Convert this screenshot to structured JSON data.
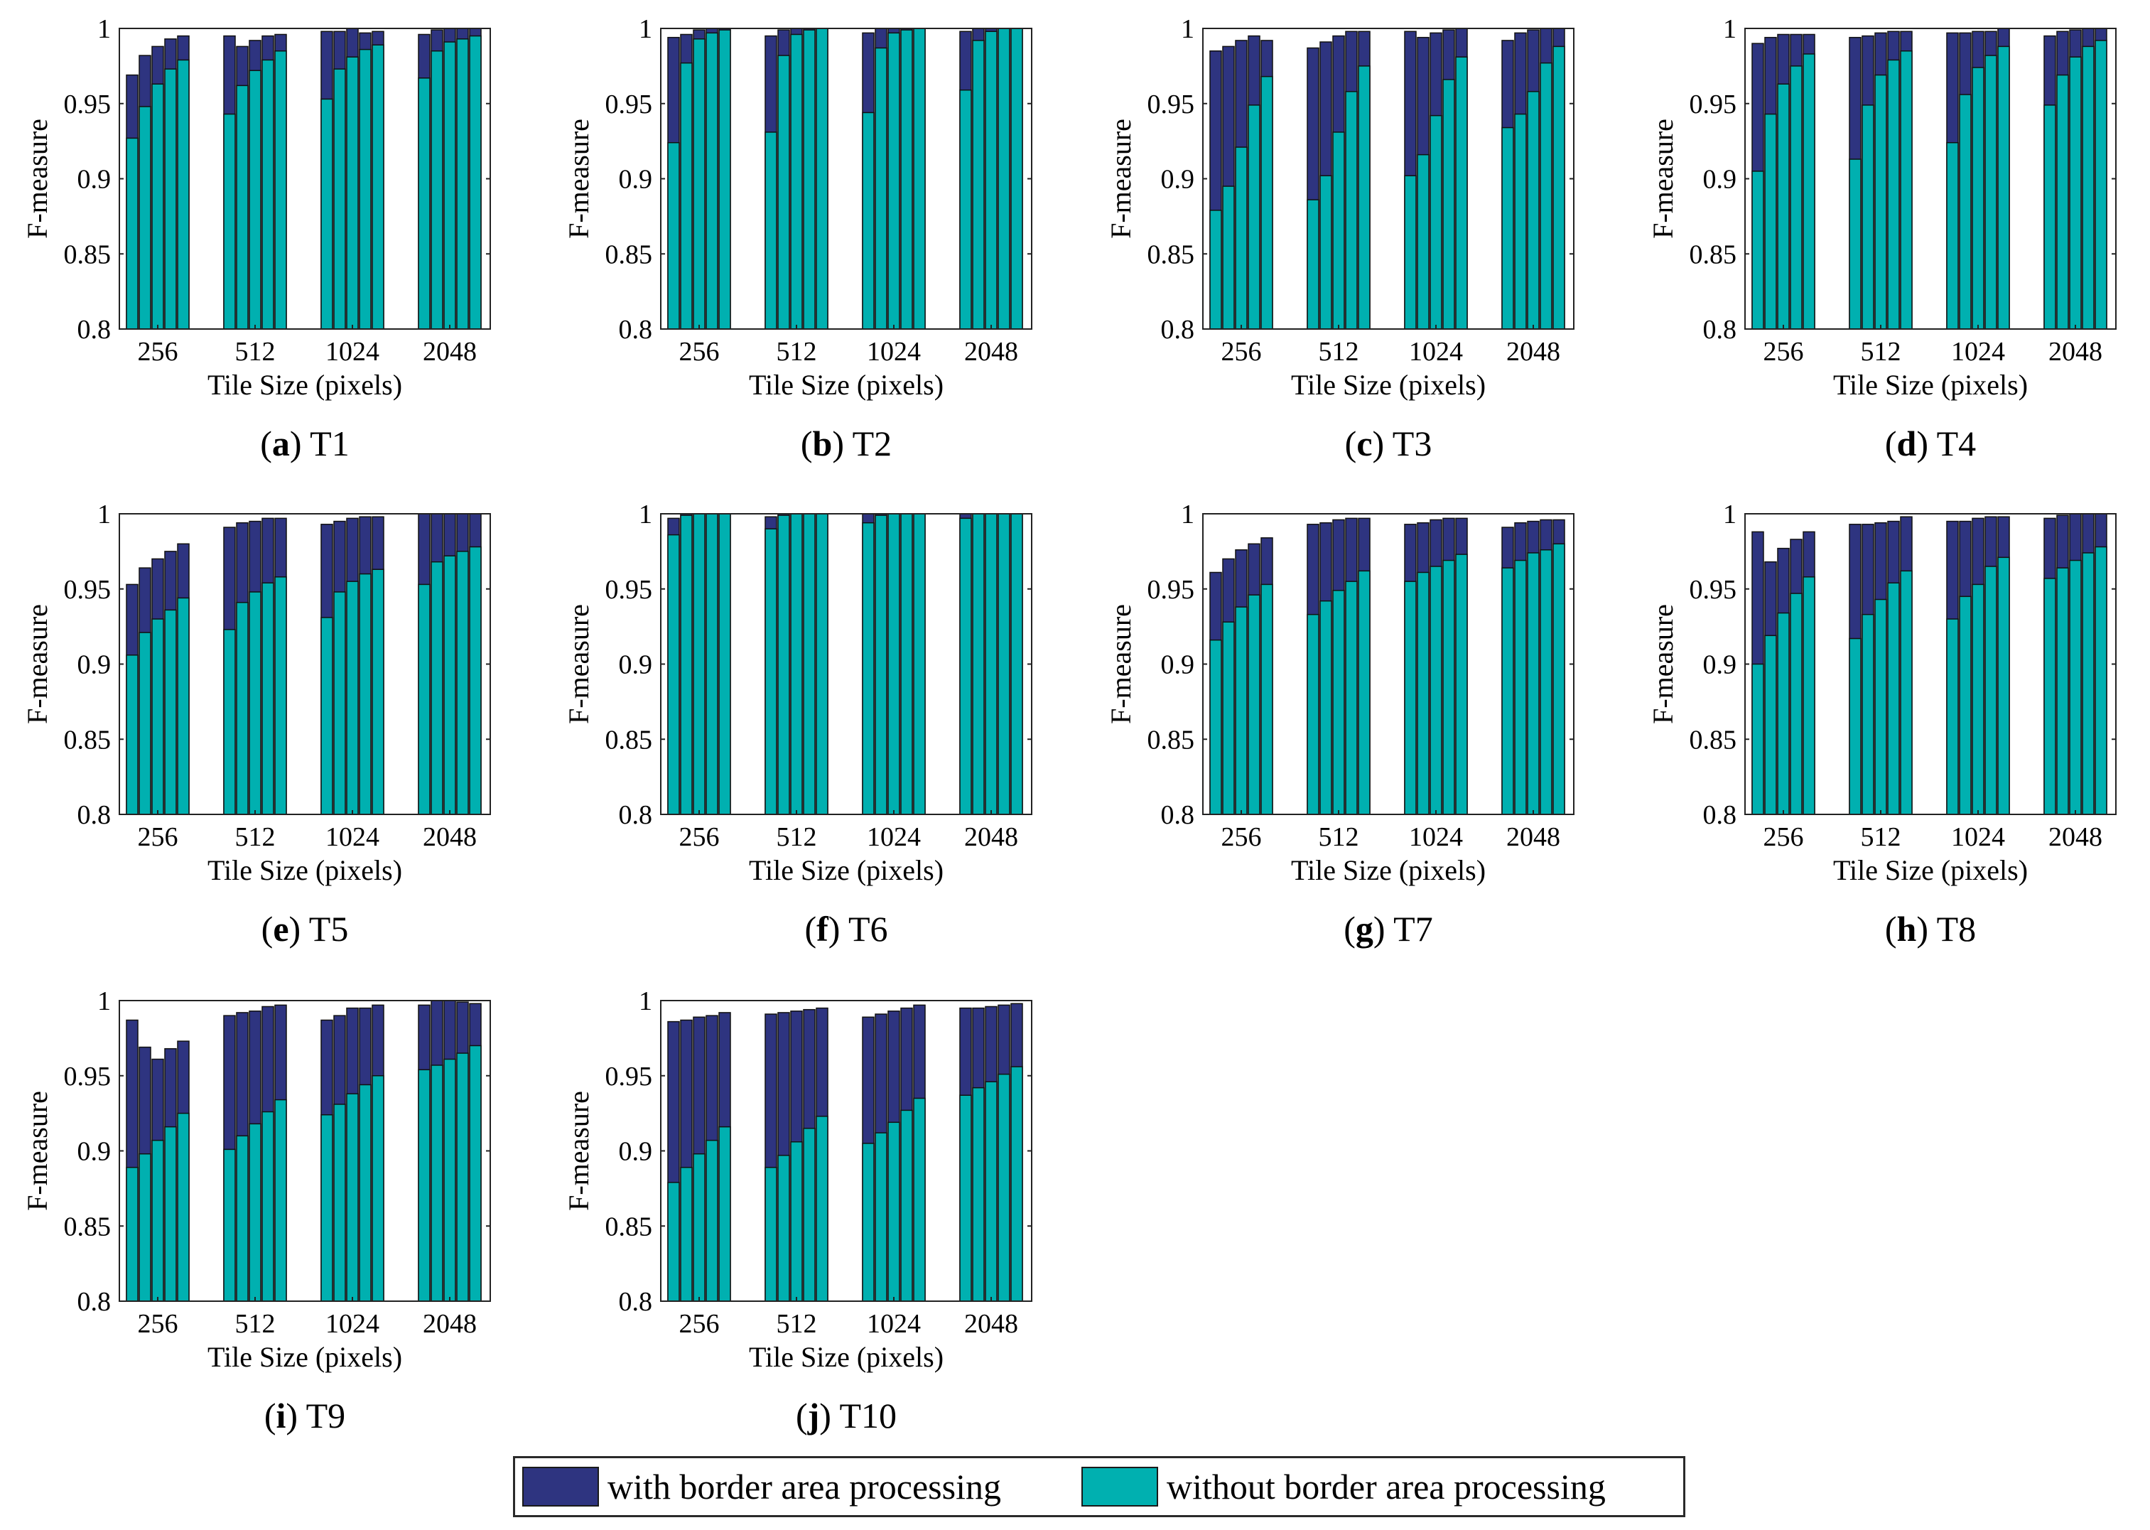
{
  "colors": {
    "with_border": "#2e3480",
    "without_border": "#00b0b0",
    "bar_edge": "#111111"
  },
  "legend": {
    "with_border": "with border area processing",
    "without_border": "without border area processing"
  },
  "chart_data": [
    {
      "id": "T1",
      "letter": "a",
      "label": "T1",
      "type": "bar",
      "xlabel": "Tile Size (pixels)",
      "ylabel": "F-measure",
      "ylim": [
        0.8,
        1
      ],
      "yticks": [
        "0.8",
        "0.85",
        "0.9",
        "0.95",
        "1"
      ],
      "categories": [
        "256",
        "512",
        "1024",
        "2048"
      ],
      "series": [
        {
          "name": "with border area processing",
          "values": [
            [
              0.969,
              0.982,
              0.988,
              0.993,
              0.995
            ],
            [
              0.995,
              0.988,
              0.992,
              0.995,
              0.996
            ],
            [
              0.998,
              0.998,
              1.0,
              0.997,
              0.998
            ],
            [
              0.996,
              0.999,
              1.0,
              1.0,
              1.0
            ]
          ]
        },
        {
          "name": "without border area processing",
          "values": [
            [
              0.927,
              0.948,
              0.963,
              0.973,
              0.979
            ],
            [
              0.943,
              0.962,
              0.972,
              0.979,
              0.985
            ],
            [
              0.953,
              0.973,
              0.981,
              0.986,
              0.989
            ],
            [
              0.967,
              0.985,
              0.991,
              0.993,
              0.995
            ]
          ]
        }
      ]
    },
    {
      "id": "T2",
      "letter": "b",
      "label": "T2",
      "type": "bar",
      "xlabel": "Tile Size (pixels)",
      "ylabel": "F-measure",
      "ylim": [
        0.8,
        1
      ],
      "yticks": [
        "0.8",
        "0.85",
        "0.9",
        "0.95",
        "1"
      ],
      "categories": [
        "256",
        "512",
        "1024",
        "2048"
      ],
      "series": [
        {
          "name": "with border area processing",
          "values": [
            [
              0.994,
              0.996,
              0.999,
              1.0,
              1.0
            ],
            [
              0.995,
              0.999,
              1.0,
              1.0,
              1.0
            ],
            [
              0.997,
              1.0,
              1.0,
              1.0,
              1.0
            ],
            [
              0.998,
              1.0,
              1.0,
              1.0,
              1.0
            ]
          ]
        },
        {
          "name": "without border area processing",
          "values": [
            [
              0.924,
              0.977,
              0.993,
              0.997,
              0.999
            ],
            [
              0.931,
              0.982,
              0.996,
              0.999,
              1.0
            ],
            [
              0.944,
              0.987,
              0.997,
              0.999,
              1.0
            ],
            [
              0.959,
              0.992,
              0.998,
              1.0,
              1.0
            ]
          ]
        }
      ]
    },
    {
      "id": "T3",
      "letter": "c",
      "label": "T3",
      "type": "bar",
      "xlabel": "Tile Size (pixels)",
      "ylabel": "F-measure",
      "ylim": [
        0.8,
        1
      ],
      "yticks": [
        "0.8",
        "0.85",
        "0.9",
        "0.95",
        "1"
      ],
      "categories": [
        "256",
        "512",
        "1024",
        "2048"
      ],
      "series": [
        {
          "name": "with border area processing",
          "values": [
            [
              0.985,
              0.988,
              0.992,
              0.995,
              0.992
            ],
            [
              0.987,
              0.991,
              0.995,
              0.998,
              0.998
            ],
            [
              0.998,
              0.994,
              0.997,
              0.999,
              1.0
            ],
            [
              0.992,
              0.997,
              0.999,
              1.0,
              1.0
            ]
          ]
        },
        {
          "name": "without border area processing",
          "values": [
            [
              0.879,
              0.895,
              0.921,
              0.949,
              0.968
            ],
            [
              0.886,
              0.902,
              0.931,
              0.958,
              0.975
            ],
            [
              0.902,
              0.916,
              0.942,
              0.966,
              0.981
            ],
            [
              0.934,
              0.943,
              0.958,
              0.977,
              0.988
            ]
          ]
        }
      ]
    },
    {
      "id": "T4",
      "letter": "d",
      "label": "T4",
      "type": "bar",
      "xlabel": "Tile Size (pixels)",
      "ylabel": "F-measure",
      "ylim": [
        0.8,
        1
      ],
      "yticks": [
        "0.8",
        "0.85",
        "0.9",
        "0.95",
        "1"
      ],
      "categories": [
        "256",
        "512",
        "1024",
        "2048"
      ],
      "series": [
        {
          "name": "with border area processing",
          "values": [
            [
              0.99,
              0.994,
              0.996,
              0.996,
              0.996
            ],
            [
              0.994,
              0.995,
              0.997,
              0.998,
              0.998
            ],
            [
              0.997,
              0.997,
              0.998,
              0.998,
              1.0
            ],
            [
              0.995,
              0.998,
              0.999,
              1.0,
              1.0
            ]
          ]
        },
        {
          "name": "without border area processing",
          "values": [
            [
              0.905,
              0.943,
              0.963,
              0.975,
              0.983
            ],
            [
              0.913,
              0.949,
              0.969,
              0.979,
              0.985
            ],
            [
              0.924,
              0.956,
              0.974,
              0.982,
              0.988
            ],
            [
              0.949,
              0.969,
              0.981,
              0.988,
              0.992
            ]
          ]
        }
      ]
    },
    {
      "id": "T5",
      "letter": "e",
      "label": "T5",
      "type": "bar",
      "xlabel": "Tile Size (pixels)",
      "ylabel": "F-measure",
      "ylim": [
        0.8,
        1
      ],
      "yticks": [
        "0.8",
        "0.85",
        "0.9",
        "0.95",
        "1"
      ],
      "categories": [
        "256",
        "512",
        "1024",
        "2048"
      ],
      "series": [
        {
          "name": "with border area processing",
          "values": [
            [
              0.953,
              0.964,
              0.97,
              0.975,
              0.98
            ],
            [
              0.991,
              0.994,
              0.995,
              0.997,
              0.997
            ],
            [
              0.993,
              0.995,
              0.997,
              0.998,
              0.998
            ],
            [
              1.0,
              1.0,
              1.0,
              1.0,
              1.0
            ]
          ]
        },
        {
          "name": "without border area processing",
          "values": [
            [
              0.906,
              0.921,
              0.93,
              0.936,
              0.944
            ],
            [
              0.923,
              0.941,
              0.948,
              0.954,
              0.958
            ],
            [
              0.931,
              0.948,
              0.955,
              0.96,
              0.963
            ],
            [
              0.953,
              0.968,
              0.972,
              0.975,
              0.978
            ]
          ]
        }
      ]
    },
    {
      "id": "T6",
      "letter": "f",
      "label": "T6",
      "type": "bar",
      "xlabel": "Tile Size (pixels)",
      "ylabel": "F-measure",
      "ylim": [
        0.8,
        1
      ],
      "yticks": [
        "0.8",
        "0.85",
        "0.9",
        "0.95",
        "1"
      ],
      "categories": [
        "256",
        "512",
        "1024",
        "2048"
      ],
      "series": [
        {
          "name": "with border area processing",
          "values": [
            [
              0.997,
              1.0,
              1.0,
              1.0,
              1.0
            ],
            [
              0.998,
              1.0,
              1.0,
              1.0,
              1.0
            ],
            [
              1.0,
              1.0,
              1.0,
              1.0,
              1.0
            ],
            [
              1.0,
              1.0,
              1.0,
              1.0,
              1.0
            ]
          ]
        },
        {
          "name": "without border area processing",
          "values": [
            [
              0.986,
              0.999,
              1.0,
              1.0,
              1.0
            ],
            [
              0.99,
              0.999,
              1.0,
              1.0,
              1.0
            ],
            [
              0.994,
              0.999,
              1.0,
              1.0,
              1.0
            ],
            [
              0.997,
              1.0,
              1.0,
              1.0,
              1.0
            ]
          ]
        }
      ]
    },
    {
      "id": "T7",
      "letter": "g",
      "label": "T7",
      "type": "bar",
      "xlabel": "Tile Size (pixels)",
      "ylabel": "F-measure",
      "ylim": [
        0.8,
        1
      ],
      "yticks": [
        "0.8",
        "0.85",
        "0.9",
        "0.95",
        "1"
      ],
      "categories": [
        "256",
        "512",
        "1024",
        "2048"
      ],
      "series": [
        {
          "name": "with border area processing",
          "values": [
            [
              0.961,
              0.97,
              0.976,
              0.98,
              0.984
            ],
            [
              0.993,
              0.994,
              0.996,
              0.997,
              0.997
            ],
            [
              0.993,
              0.994,
              0.996,
              0.997,
              0.997
            ],
            [
              0.991,
              0.994,
              0.995,
              0.996,
              0.996
            ]
          ]
        },
        {
          "name": "without border area processing",
          "values": [
            [
              0.916,
              0.928,
              0.938,
              0.946,
              0.953
            ],
            [
              0.933,
              0.942,
              0.949,
              0.955,
              0.962
            ],
            [
              0.955,
              0.961,
              0.965,
              0.969,
              0.973
            ],
            [
              0.964,
              0.969,
              0.974,
              0.976,
              0.98
            ]
          ]
        }
      ]
    },
    {
      "id": "T8",
      "letter": "h",
      "label": "T8",
      "type": "bar",
      "xlabel": "Tile Size (pixels)",
      "ylabel": "F-measure",
      "ylim": [
        0.8,
        1
      ],
      "yticks": [
        "0.8",
        "0.85",
        "0.9",
        "0.95",
        "1"
      ],
      "categories": [
        "256",
        "512",
        "1024",
        "2048"
      ],
      "series": [
        {
          "name": "with border area processing",
          "values": [
            [
              0.988,
              0.968,
              0.977,
              0.983,
              0.988
            ],
            [
              0.993,
              0.993,
              0.994,
              0.995,
              0.998
            ],
            [
              0.995,
              0.995,
              0.997,
              0.998,
              0.998
            ],
            [
              0.997,
              0.999,
              1.0,
              1.0,
              1.0
            ]
          ]
        },
        {
          "name": "without border area processing",
          "values": [
            [
              0.9,
              0.919,
              0.934,
              0.947,
              0.958
            ],
            [
              0.917,
              0.933,
              0.943,
              0.954,
              0.962
            ],
            [
              0.93,
              0.945,
              0.953,
              0.965,
              0.971
            ],
            [
              0.957,
              0.964,
              0.969,
              0.974,
              0.978
            ]
          ]
        }
      ]
    },
    {
      "id": "T9",
      "letter": "i",
      "label": "T9",
      "type": "bar",
      "xlabel": "Tile Size (pixels)",
      "ylabel": "F-measure",
      "ylim": [
        0.8,
        1
      ],
      "yticks": [
        "0.8",
        "0.85",
        "0.9",
        "0.95",
        "1"
      ],
      "categories": [
        "256",
        "512",
        "1024",
        "2048"
      ],
      "series": [
        {
          "name": "with border area processing",
          "values": [
            [
              0.987,
              0.969,
              0.961,
              0.968,
              0.973
            ],
            [
              0.99,
              0.992,
              0.993,
              0.996,
              0.997
            ],
            [
              0.987,
              0.99,
              0.995,
              0.995,
              0.997
            ],
            [
              0.997,
              1.0,
              1.0,
              0.999,
              0.998
            ]
          ]
        },
        {
          "name": "without border area processing",
          "values": [
            [
              0.889,
              0.898,
              0.907,
              0.916,
              0.925
            ],
            [
              0.901,
              0.91,
              0.918,
              0.926,
              0.934
            ],
            [
              0.924,
              0.931,
              0.938,
              0.944,
              0.95
            ],
            [
              0.954,
              0.957,
              0.961,
              0.965,
              0.97
            ]
          ]
        }
      ]
    },
    {
      "id": "T10",
      "letter": "j",
      "label": "T10",
      "type": "bar",
      "xlabel": "Tile Size (pixels)",
      "ylabel": "F-measure",
      "ylim": [
        0.8,
        1
      ],
      "yticks": [
        "0.8",
        "0.85",
        "0.9",
        "0.95",
        "1"
      ],
      "categories": [
        "256",
        "512",
        "1024",
        "2048"
      ],
      "series": [
        {
          "name": "with border area processing",
          "values": [
            [
              0.986,
              0.987,
              0.989,
              0.99,
              0.992
            ],
            [
              0.991,
              0.992,
              0.993,
              0.994,
              0.995
            ],
            [
              0.989,
              0.991,
              0.993,
              0.995,
              0.997
            ],
            [
              0.995,
              0.995,
              0.996,
              0.997,
              0.998
            ]
          ]
        },
        {
          "name": "without border area processing",
          "values": [
            [
              0.879,
              0.889,
              0.898,
              0.907,
              0.916
            ],
            [
              0.889,
              0.897,
              0.906,
              0.915,
              0.923
            ],
            [
              0.905,
              0.912,
              0.919,
              0.927,
              0.935
            ],
            [
              0.937,
              0.942,
              0.946,
              0.951,
              0.956
            ]
          ]
        }
      ]
    }
  ]
}
